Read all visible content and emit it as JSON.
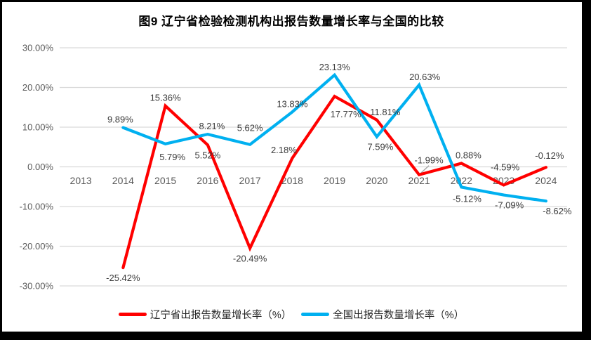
{
  "chart_data": {
    "type": "line",
    "title": "图9  辽宁省检验检测机构出报告数量增长率与全国的比较",
    "categories": [
      "2013",
      "2014",
      "2015",
      "2016",
      "2017",
      "2018",
      "2019",
      "2020",
      "2021",
      "2022",
      "2023",
      "2024"
    ],
    "series": [
      {
        "name": "辽宁省出报告数量增长率（%）",
        "color": "#FF0000",
        "values": [
          null,
          -25.42,
          15.36,
          5.52,
          -20.49,
          2.18,
          17.77,
          11.81,
          -1.99,
          0.88,
          -4.59,
          -0.12
        ],
        "labels": [
          null,
          "-25.42%",
          "15.36%",
          "5.52%",
          "-20.49%",
          "2.18%",
          "17.77%",
          "11.81%",
          "-1.99%",
          "0.88%",
          "-4.59%",
          "-0.12%"
        ],
        "label_positions": [
          null,
          "below",
          "above",
          "below",
          "below",
          "above",
          "below",
          "above",
          "above",
          "above",
          "above",
          "above"
        ],
        "label_dx": [
          0,
          0,
          0,
          0,
          0,
          -12,
          16,
          12,
          14,
          10,
          2,
          5
        ],
        "label_dy": [
          0,
          0,
          0,
          0,
          0,
          0,
          11,
          0,
          -9,
          0,
          -14,
          -5
        ]
      },
      {
        "name": "全国出报告数量增长率（%）",
        "color": "#00B0F0",
        "values": [
          null,
          9.89,
          5.79,
          8.21,
          5.62,
          13.83,
          23.13,
          7.59,
          20.63,
          -5.12,
          -7.09,
          -8.62
        ],
        "labels": [
          null,
          "9.89%",
          "5.79%",
          "8.21%",
          "5.62%",
          "13.83%",
          "23.13%",
          "7.59%",
          "20.63%",
          "-5.12%",
          "-7.09%",
          "-8.62%"
        ],
        "label_positions": [
          null,
          "above",
          "below",
          "above",
          "above",
          "above",
          "above",
          "below",
          "above",
          "below",
          "below",
          "below"
        ],
        "label_dx": [
          0,
          -4,
          10,
          6,
          0,
          0,
          0,
          5,
          8,
          8,
          8,
          16
        ],
        "label_dy": [
          0,
          0,
          4,
          0,
          -12,
          0,
          0,
          0,
          0,
          2,
          0,
          0
        ]
      }
    ],
    "ylim": [
      -30,
      30
    ],
    "y_tick_step": 10,
    "y_tick_labels": [
      "30.00%",
      "20.00%",
      "10.00%",
      "0.00%",
      "-10.00%",
      "-20.00%",
      "-30.00%"
    ],
    "xlabel": "",
    "ylabel": "",
    "grid": "horizontal",
    "legend_position": "bottom",
    "leader_lines": [
      {
        "series": 0,
        "point_index": 8
      }
    ],
    "colors": {
      "grid": "#D9D9D9",
      "axis_text": "#595959",
      "data_label": "#3B3B3B",
      "leader": "#A6A6A6",
      "background": "#FFFFFF",
      "frame": "#000000"
    }
  }
}
